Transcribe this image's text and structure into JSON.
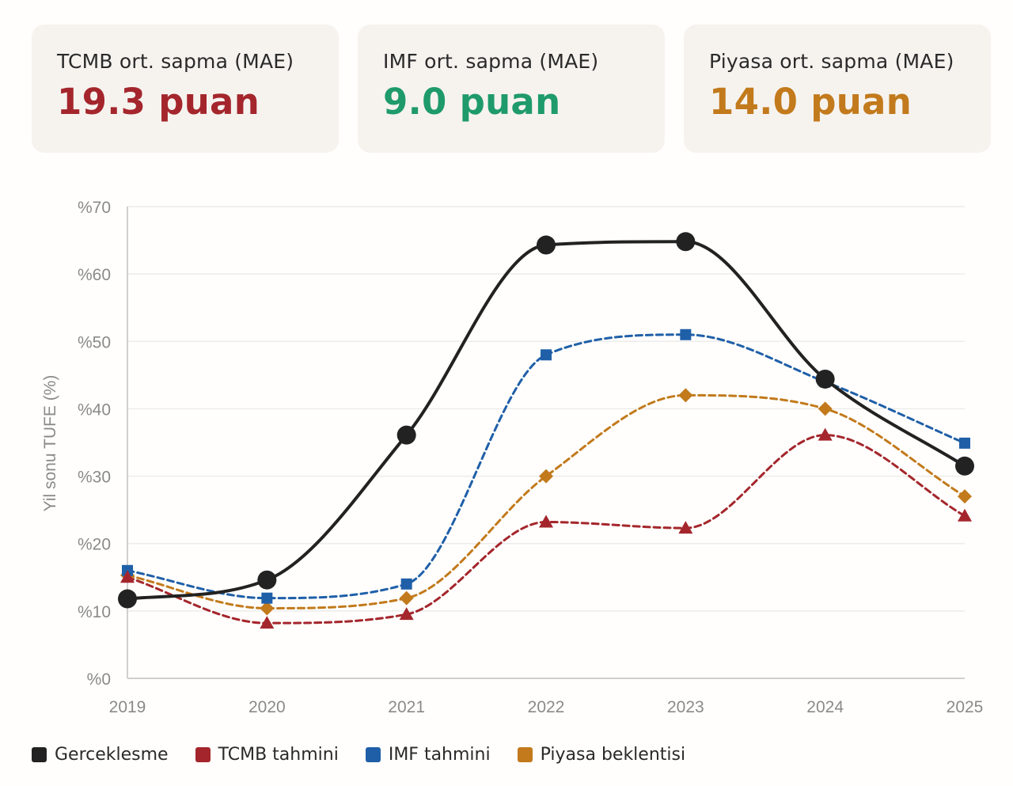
{
  "cards": [
    {
      "label": "TCMB ort. sapma (MAE)",
      "value": "19.3 puan",
      "color": "#a4262c"
    },
    {
      "label": "IMF ort. sapma (MAE)",
      "value": "9.0 puan",
      "color": "#1f9a6a"
    },
    {
      "label": "Piyasa ort. sapma (MAE)",
      "value": "14.0 puan",
      "color": "#c27a1c"
    }
  ],
  "chart_data": {
    "type": "line",
    "title": "",
    "xlabel": "",
    "ylabel": "Yil sonu TUFE (%)",
    "x": [
      "2019",
      "2020",
      "2021",
      "2022",
      "2023",
      "2024",
      "2025"
    ],
    "y_ticks": [
      "%0",
      "%10",
      "%20",
      "%30",
      "%40",
      "%50",
      "%60",
      "%70"
    ],
    "ylim": [
      0,
      70
    ],
    "grid": true,
    "legend_position": "bottom-left",
    "series": [
      {
        "name": "Gerceklesme",
        "color": "#222222",
        "marker": "circle",
        "style": "solid",
        "values": [
          11.8,
          14.6,
          36.1,
          64.3,
          64.8,
          44.4,
          31.5
        ]
      },
      {
        "name": "TCMB tahmini",
        "color": "#a4262c",
        "marker": "triangle",
        "style": "dashed",
        "values": [
          15.0,
          8.2,
          9.5,
          23.2,
          22.3,
          36.1,
          24.1
        ]
      },
      {
        "name": "IMF tahmini",
        "color": "#1f5fa8",
        "marker": "square",
        "style": "dashed",
        "values": [
          16.0,
          11.9,
          14.0,
          48.0,
          51.0,
          44.0,
          34.9
        ]
      },
      {
        "name": "Piyasa beklentisi",
        "color": "#c27a1c",
        "marker": "diamond",
        "style": "dashed",
        "values": [
          15.3,
          10.4,
          11.9,
          30.0,
          42.0,
          40.0,
          27.0
        ]
      }
    ]
  }
}
